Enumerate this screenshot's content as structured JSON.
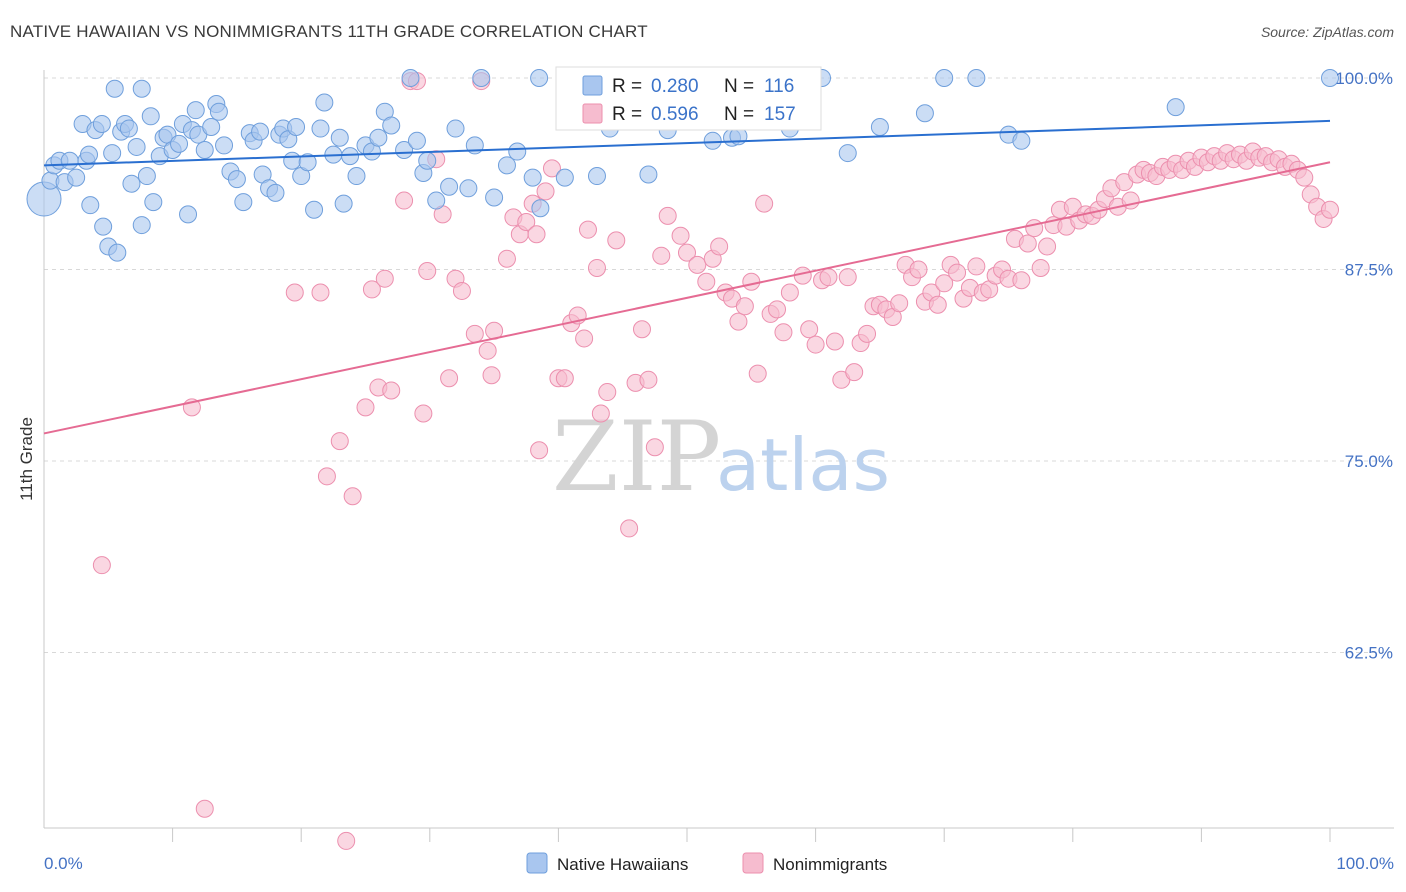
{
  "title": "NATIVE HAWAIIAN VS NONIMMIGRANTS 11TH GRADE CORRELATION CHART",
  "source": "Source: ZipAtlas.com",
  "watermark": {
    "part1": "ZIP",
    "part2": "atlas"
  },
  "colors": {
    "blue_fill": "#a9c6ef",
    "blue_stroke": "#6f9fdc",
    "blue_line": "#2a6fd0",
    "pink_fill": "#f6bccf",
    "pink_stroke": "#ec8fae",
    "pink_line": "#e56b93",
    "tick_text": "#4472c4",
    "grid": "#d8d8d8"
  },
  "legend_top": {
    "rows": [
      {
        "r_label": "R =",
        "r_value": "0.280",
        "n_label": "N =",
        "n_value": "116"
      },
      {
        "r_label": "R =",
        "r_value": "0.596",
        "n_label": "N =",
        "n_value": "157"
      }
    ]
  },
  "legend_bottom": [
    "Native Hawaiians",
    "Nonimmigrants"
  ],
  "chart_data": {
    "type": "scatter",
    "xlabel": "",
    "ylabel": "11th Grade",
    "xlim": [
      0,
      100
    ],
    "ylim": [
      50,
      100
    ],
    "x_tick_labels": [
      "0.0%",
      "100.0%"
    ],
    "y_tick_values": [
      62.5,
      75.0,
      87.5,
      100.0
    ],
    "y_tick_labels": [
      "62.5%",
      "75.0%",
      "87.5%",
      "100.0%"
    ],
    "grid": true,
    "legend_position": "top-center",
    "series": [
      {
        "name": "Native Hawaiians",
        "r": 0.28,
        "n": 116,
        "trend": {
          "x": [
            0,
            100
          ],
          "y": [
            94.3,
            97.2
          ]
        },
        "points": [
          [
            0.0,
            92.1
          ],
          [
            0.5,
            93.3
          ],
          [
            0.8,
            94.3
          ],
          [
            1.2,
            94.6
          ],
          [
            1.6,
            93.2
          ],
          [
            2.0,
            94.6
          ],
          [
            2.5,
            93.5
          ],
          [
            3.0,
            97.0
          ],
          [
            3.3,
            94.6
          ],
          [
            3.5,
            95.0
          ],
          [
            3.6,
            91.7
          ],
          [
            4.0,
            96.6
          ],
          [
            4.5,
            97.0
          ],
          [
            4.6,
            90.3
          ],
          [
            5.0,
            89.0
          ],
          [
            5.3,
            95.1
          ],
          [
            5.7,
            88.6
          ],
          [
            5.5,
            99.3
          ],
          [
            6.0,
            96.5
          ],
          [
            6.3,
            97.0
          ],
          [
            6.6,
            96.7
          ],
          [
            6.8,
            93.1
          ],
          [
            7.2,
            95.5
          ],
          [
            7.6,
            99.3
          ],
          [
            7.6,
            90.4
          ],
          [
            8.0,
            93.6
          ],
          [
            8.3,
            97.5
          ],
          [
            8.5,
            91.9
          ],
          [
            9.0,
            94.9
          ],
          [
            9.3,
            96.1
          ],
          [
            9.6,
            96.3
          ],
          [
            10.0,
            95.3
          ],
          [
            10.5,
            95.7
          ],
          [
            10.8,
            97.0
          ],
          [
            11.2,
            91.1
          ],
          [
            11.5,
            96.6
          ],
          [
            11.8,
            97.9
          ],
          [
            12.0,
            96.3
          ],
          [
            12.5,
            95.3
          ],
          [
            13.0,
            96.8
          ],
          [
            13.4,
            98.3
          ],
          [
            13.6,
            97.8
          ],
          [
            14.0,
            95.6
          ],
          [
            14.5,
            93.9
          ],
          [
            15.0,
            93.4
          ],
          [
            15.5,
            91.9
          ],
          [
            16.0,
            96.4
          ],
          [
            16.3,
            95.9
          ],
          [
            16.8,
            96.5
          ],
          [
            17.0,
            93.7
          ],
          [
            17.5,
            92.8
          ],
          [
            18.0,
            92.5
          ],
          [
            18.3,
            96.3
          ],
          [
            18.6,
            96.7
          ],
          [
            19.0,
            96.0
          ],
          [
            19.3,
            94.6
          ],
          [
            19.6,
            96.8
          ],
          [
            20.0,
            93.6
          ],
          [
            20.5,
            94.5
          ],
          [
            21.0,
            91.4
          ],
          [
            21.5,
            96.7
          ],
          [
            21.8,
            98.4
          ],
          [
            22.5,
            95.0
          ],
          [
            23.0,
            96.1
          ],
          [
            23.3,
            91.8
          ],
          [
            23.8,
            94.9
          ],
          [
            24.3,
            93.6
          ],
          [
            25.0,
            95.6
          ],
          [
            25.5,
            95.2
          ],
          [
            26.0,
            96.1
          ],
          [
            26.5,
            97.8
          ],
          [
            27.0,
            96.9
          ],
          [
            28.0,
            95.3
          ],
          [
            28.5,
            100.0
          ],
          [
            29.0,
            95.9
          ],
          [
            29.5,
            93.8
          ],
          [
            29.8,
            94.6
          ],
          [
            30.5,
            92.0
          ],
          [
            31.5,
            92.9
          ],
          [
            32.0,
            96.7
          ],
          [
            33.0,
            92.8
          ],
          [
            33.5,
            95.6
          ],
          [
            34.0,
            100.0
          ],
          [
            35.0,
            92.2
          ],
          [
            36.0,
            94.3
          ],
          [
            36.8,
            95.2
          ],
          [
            38.0,
            93.5
          ],
          [
            38.5,
            100.0
          ],
          [
            38.6,
            91.5
          ],
          [
            40.5,
            93.5
          ],
          [
            41.0,
            100.0
          ],
          [
            43.0,
            93.6
          ],
          [
            43.5,
            97.5
          ],
          [
            44.0,
            96.7
          ],
          [
            45.5,
            100.0
          ],
          [
            47.0,
            93.7
          ],
          [
            47.5,
            100.0
          ],
          [
            48.5,
            96.6
          ],
          [
            49.0,
            100.0
          ],
          [
            52.0,
            95.9
          ],
          [
            53.5,
            96.1
          ],
          [
            54.0,
            96.2
          ],
          [
            55.0,
            100.0
          ],
          [
            58.0,
            96.7
          ],
          [
            60.5,
            100.0
          ],
          [
            62.5,
            95.1
          ],
          [
            65.0,
            96.8
          ],
          [
            68.5,
            97.7
          ],
          [
            70.0,
            100.0
          ],
          [
            72.5,
            100.0
          ],
          [
            75.0,
            96.3
          ],
          [
            76.0,
            95.9
          ],
          [
            88.0,
            98.1
          ],
          [
            100.0,
            100.0
          ]
        ]
      },
      {
        "name": "Nonimmigrants",
        "r": 0.596,
        "n": 157,
        "trend": {
          "x": [
            0,
            100
          ],
          "y": [
            76.8,
            94.5
          ]
        },
        "points": [
          [
            4.5,
            68.2
          ],
          [
            11.5,
            78.5
          ],
          [
            12.5,
            52.3
          ],
          [
            19.5,
            86.0
          ],
          [
            21.5,
            86.0
          ],
          [
            22.0,
            74.0
          ],
          [
            23.0,
            76.3
          ],
          [
            23.5,
            50.2
          ],
          [
            24.0,
            72.7
          ],
          [
            25.0,
            78.5
          ],
          [
            25.5,
            86.2
          ],
          [
            26.0,
            79.8
          ],
          [
            26.5,
            86.9
          ],
          [
            27.0,
            79.6
          ],
          [
            28.0,
            92.0
          ],
          [
            28.5,
            99.8
          ],
          [
            29.0,
            99.8
          ],
          [
            29.5,
            78.1
          ],
          [
            29.8,
            87.4
          ],
          [
            30.5,
            94.7
          ],
          [
            31.0,
            91.1
          ],
          [
            31.5,
            80.4
          ],
          [
            32.0,
            86.9
          ],
          [
            32.5,
            86.1
          ],
          [
            33.5,
            83.3
          ],
          [
            34.0,
            99.8
          ],
          [
            34.5,
            82.2
          ],
          [
            34.8,
            80.6
          ],
          [
            35.0,
            83.5
          ],
          [
            36.0,
            88.2
          ],
          [
            36.5,
            90.9
          ],
          [
            37.0,
            89.8
          ],
          [
            37.5,
            90.6
          ],
          [
            38.0,
            91.8
          ],
          [
            38.3,
            89.8
          ],
          [
            38.5,
            75.7
          ],
          [
            39.0,
            92.6
          ],
          [
            39.5,
            94.1
          ],
          [
            40.0,
            80.4
          ],
          [
            40.5,
            80.4
          ],
          [
            41.0,
            84.0
          ],
          [
            41.5,
            84.5
          ],
          [
            42.0,
            83.0
          ],
          [
            42.3,
            90.1
          ],
          [
            43.0,
            87.6
          ],
          [
            43.3,
            78.1
          ],
          [
            43.8,
            79.5
          ],
          [
            44.5,
            89.4
          ],
          [
            45.5,
            70.6
          ],
          [
            46.0,
            80.1
          ],
          [
            46.5,
            83.6
          ],
          [
            47.0,
            80.3
          ],
          [
            47.5,
            75.9
          ],
          [
            48.0,
            88.4
          ],
          [
            48.5,
            91.0
          ],
          [
            49.5,
            89.7
          ],
          [
            50.0,
            88.6
          ],
          [
            50.8,
            87.8
          ],
          [
            51.5,
            86.7
          ],
          [
            52.0,
            88.2
          ],
          [
            52.5,
            89.0
          ],
          [
            53.0,
            86.0
          ],
          [
            53.5,
            85.6
          ],
          [
            54.0,
            84.1
          ],
          [
            54.5,
            85.1
          ],
          [
            55.0,
            86.7
          ],
          [
            55.5,
            80.7
          ],
          [
            56.0,
            91.8
          ],
          [
            56.5,
            84.6
          ],
          [
            57.0,
            84.9
          ],
          [
            57.5,
            83.4
          ],
          [
            58.0,
            86.0
          ],
          [
            59.0,
            87.1
          ],
          [
            59.5,
            83.6
          ],
          [
            60.0,
            82.6
          ],
          [
            60.5,
            86.8
          ],
          [
            61.0,
            87.0
          ],
          [
            61.5,
            82.8
          ],
          [
            62.0,
            80.3
          ],
          [
            62.5,
            87.0
          ],
          [
            63.0,
            80.8
          ],
          [
            63.5,
            82.7
          ],
          [
            64.0,
            83.3
          ],
          [
            64.5,
            85.1
          ],
          [
            65.0,
            85.2
          ],
          [
            65.5,
            84.9
          ],
          [
            66.0,
            84.4
          ],
          [
            66.5,
            85.3
          ],
          [
            67.0,
            87.8
          ],
          [
            67.5,
            87.0
          ],
          [
            68.0,
            87.5
          ],
          [
            68.5,
            85.4
          ],
          [
            69.0,
            86.0
          ],
          [
            69.5,
            85.2
          ],
          [
            70.0,
            86.6
          ],
          [
            70.5,
            87.8
          ],
          [
            71.0,
            87.3
          ],
          [
            71.5,
            85.6
          ],
          [
            72.0,
            86.3
          ],
          [
            72.5,
            87.7
          ],
          [
            73.0,
            86.0
          ],
          [
            73.5,
            86.2
          ],
          [
            74.0,
            87.1
          ],
          [
            74.5,
            87.5
          ],
          [
            75.0,
            86.9
          ],
          [
            75.5,
            89.5
          ],
          [
            76.0,
            86.8
          ],
          [
            76.5,
            89.2
          ],
          [
            77.0,
            90.2
          ],
          [
            77.5,
            87.6
          ],
          [
            78.0,
            89.0
          ],
          [
            78.5,
            90.4
          ],
          [
            79.0,
            91.4
          ],
          [
            79.5,
            90.3
          ],
          [
            80.0,
            91.6
          ],
          [
            80.5,
            90.7
          ],
          [
            81.0,
            91.1
          ],
          [
            81.5,
            91.0
          ],
          [
            82.0,
            91.4
          ],
          [
            82.5,
            92.1
          ],
          [
            83.0,
            92.8
          ],
          [
            83.5,
            91.6
          ],
          [
            84.0,
            93.2
          ],
          [
            84.5,
            92.0
          ],
          [
            85.0,
            93.7
          ],
          [
            85.5,
            94.0
          ],
          [
            86.0,
            93.8
          ],
          [
            86.5,
            93.6
          ],
          [
            87.0,
            94.2
          ],
          [
            87.5,
            94.0
          ],
          [
            88.0,
            94.4
          ],
          [
            88.5,
            94.0
          ],
          [
            89.0,
            94.6
          ],
          [
            89.5,
            94.2
          ],
          [
            90.0,
            94.8
          ],
          [
            90.5,
            94.5
          ],
          [
            91.0,
            94.9
          ],
          [
            91.5,
            94.6
          ],
          [
            92.0,
            95.1
          ],
          [
            92.5,
            94.7
          ],
          [
            93.0,
            95.0
          ],
          [
            93.5,
            94.6
          ],
          [
            94.0,
            95.2
          ],
          [
            94.5,
            94.8
          ],
          [
            95.0,
            94.9
          ],
          [
            95.5,
            94.5
          ],
          [
            96.0,
            94.7
          ],
          [
            96.5,
            94.2
          ],
          [
            97.0,
            94.4
          ],
          [
            97.5,
            94.0
          ],
          [
            98.0,
            93.5
          ],
          [
            98.5,
            92.4
          ],
          [
            99.0,
            91.6
          ],
          [
            99.5,
            90.8
          ],
          [
            100.0,
            91.4
          ]
        ]
      }
    ]
  }
}
